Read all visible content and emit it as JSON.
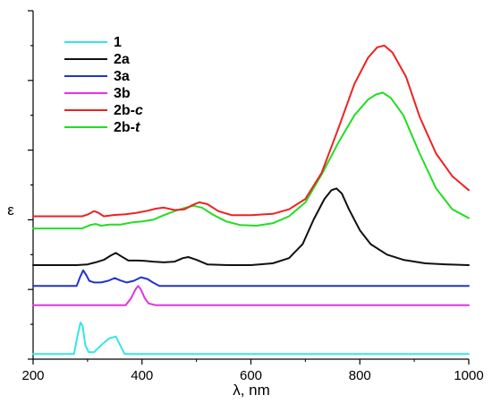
{
  "chart_data": {
    "type": "line",
    "title": "",
    "xlabel": "λ, nm",
    "ylabel": "ε",
    "xlim": [
      200,
      1000
    ],
    "ylim": [
      0,
      100
    ],
    "x_ticks": [
      "200",
      "400",
      "600",
      "800",
      "1000"
    ],
    "y_ticks_labeled": false,
    "grid": false,
    "legend_position": "top-left",
    "series": [
      {
        "name": "1",
        "label_parts": [
          "1",
          ""
        ],
        "color": "#33e6e6",
        "points": [
          [
            200,
            1.5
          ],
          [
            275,
            1.5
          ],
          [
            282,
            7
          ],
          [
            287,
            10.5
          ],
          [
            291,
            9.5
          ],
          [
            296,
            4
          ],
          [
            302,
            2
          ],
          [
            312,
            2
          ],
          [
            325,
            4
          ],
          [
            340,
            6
          ],
          [
            352,
            6.5
          ],
          [
            360,
            4
          ],
          [
            368,
            1.5
          ],
          [
            1000,
            1.5
          ]
        ]
      },
      {
        "name": "3b",
        "label_parts": [
          "3b",
          ""
        ],
        "color": "#e033e0",
        "points": [
          [
            200,
            15.5
          ],
          [
            370,
            15.5
          ],
          [
            380,
            17.5
          ],
          [
            388,
            20
          ],
          [
            393,
            21
          ],
          [
            398,
            20
          ],
          [
            405,
            17.5
          ],
          [
            412,
            16
          ],
          [
            425,
            15.5
          ],
          [
            1000,
            15.5
          ]
        ]
      },
      {
        "name": "3a",
        "label_parts": [
          "3a",
          ""
        ],
        "color": "#2233cc",
        "points": [
          [
            200,
            21
          ],
          [
            280,
            21
          ],
          [
            286,
            23.5
          ],
          [
            292,
            25.5
          ],
          [
            298,
            24
          ],
          [
            303,
            22.5
          ],
          [
            312,
            22
          ],
          [
            325,
            22
          ],
          [
            338,
            22.5
          ],
          [
            350,
            23.3
          ],
          [
            360,
            22.6
          ],
          [
            372,
            22
          ],
          [
            385,
            22.5
          ],
          [
            398,
            23.5
          ],
          [
            410,
            23
          ],
          [
            420,
            22
          ],
          [
            432,
            21
          ],
          [
            1000,
            21
          ]
        ]
      },
      {
        "name": "2a",
        "label_parts": [
          "2a",
          ""
        ],
        "color": "#111111",
        "points": [
          [
            200,
            27
          ],
          [
            280,
            27
          ],
          [
            300,
            27.2
          ],
          [
            315,
            27.8
          ],
          [
            330,
            28.5
          ],
          [
            343,
            29.8
          ],
          [
            352,
            30.5
          ],
          [
            362,
            29.5
          ],
          [
            375,
            28.3
          ],
          [
            392,
            28.3
          ],
          [
            405,
            28.2
          ],
          [
            420,
            28
          ],
          [
            440,
            27.8
          ],
          [
            460,
            28
          ],
          [
            475,
            29
          ],
          [
            485,
            29.3
          ],
          [
            500,
            28.5
          ],
          [
            520,
            27.2
          ],
          [
            560,
            27
          ],
          [
            600,
            27
          ],
          [
            640,
            27.5
          ],
          [
            670,
            29
          ],
          [
            695,
            33
          ],
          [
            715,
            40
          ],
          [
            735,
            46
          ],
          [
            748,
            48.5
          ],
          [
            757,
            49
          ],
          [
            767,
            47.5
          ],
          [
            780,
            43
          ],
          [
            800,
            37
          ],
          [
            820,
            33
          ],
          [
            850,
            30
          ],
          [
            880,
            28.5
          ],
          [
            920,
            27.5
          ],
          [
            960,
            27.2
          ],
          [
            1000,
            27
          ]
        ]
      },
      {
        "name": "2b-t",
        "label_parts": [
          "2b-",
          "t"
        ],
        "color": "#22dd22",
        "points": [
          [
            200,
            37.5
          ],
          [
            290,
            37.5
          ],
          [
            305,
            38.5
          ],
          [
            315,
            38.8
          ],
          [
            325,
            38.3
          ],
          [
            340,
            38.6
          ],
          [
            360,
            38.6
          ],
          [
            380,
            39.2
          ],
          [
            400,
            39.5
          ],
          [
            420,
            40
          ],
          [
            440,
            41.3
          ],
          [
            460,
            42.5
          ],
          [
            480,
            43.5
          ],
          [
            495,
            44
          ],
          [
            510,
            43.5
          ],
          [
            530,
            41.5
          ],
          [
            555,
            39.5
          ],
          [
            580,
            38.5
          ],
          [
            610,
            38.3
          ],
          [
            640,
            39
          ],
          [
            670,
            41
          ],
          [
            700,
            45
          ],
          [
            730,
            53
          ],
          [
            760,
            62
          ],
          [
            790,
            70
          ],
          [
            815,
            74.5
          ],
          [
            830,
            76
          ],
          [
            842,
            76.5
          ],
          [
            857,
            75
          ],
          [
            880,
            70
          ],
          [
            910,
            59
          ],
          [
            940,
            49
          ],
          [
            970,
            43
          ],
          [
            1000,
            40.5
          ]
        ]
      },
      {
        "name": "2b-c",
        "label_parts": [
          "2b-",
          "c"
        ],
        "color": "#ee2222",
        "points": [
          [
            200,
            41
          ],
          [
            290,
            41
          ],
          [
            300,
            41.5
          ],
          [
            312,
            42.5
          ],
          [
            320,
            42
          ],
          [
            330,
            41
          ],
          [
            350,
            41.4
          ],
          [
            370,
            41.6
          ],
          [
            390,
            42
          ],
          [
            410,
            42.6
          ],
          [
            425,
            43.2
          ],
          [
            440,
            43.5
          ],
          [
            460,
            42.8
          ],
          [
            478,
            43
          ],
          [
            492,
            44.2
          ],
          [
            505,
            45
          ],
          [
            520,
            44.5
          ],
          [
            540,
            42.5
          ],
          [
            565,
            41.3
          ],
          [
            600,
            41.3
          ],
          [
            640,
            41.7
          ],
          [
            670,
            43
          ],
          [
            700,
            46
          ],
          [
            730,
            53.5
          ],
          [
            760,
            66
          ],
          [
            790,
            79
          ],
          [
            815,
            86.5
          ],
          [
            832,
            89.5
          ],
          [
            845,
            90
          ],
          [
            860,
            88
          ],
          [
            885,
            81
          ],
          [
            910,
            69.5
          ],
          [
            940,
            59
          ],
          [
            970,
            52.5
          ],
          [
            1000,
            48.5
          ]
        ]
      }
    ]
  }
}
